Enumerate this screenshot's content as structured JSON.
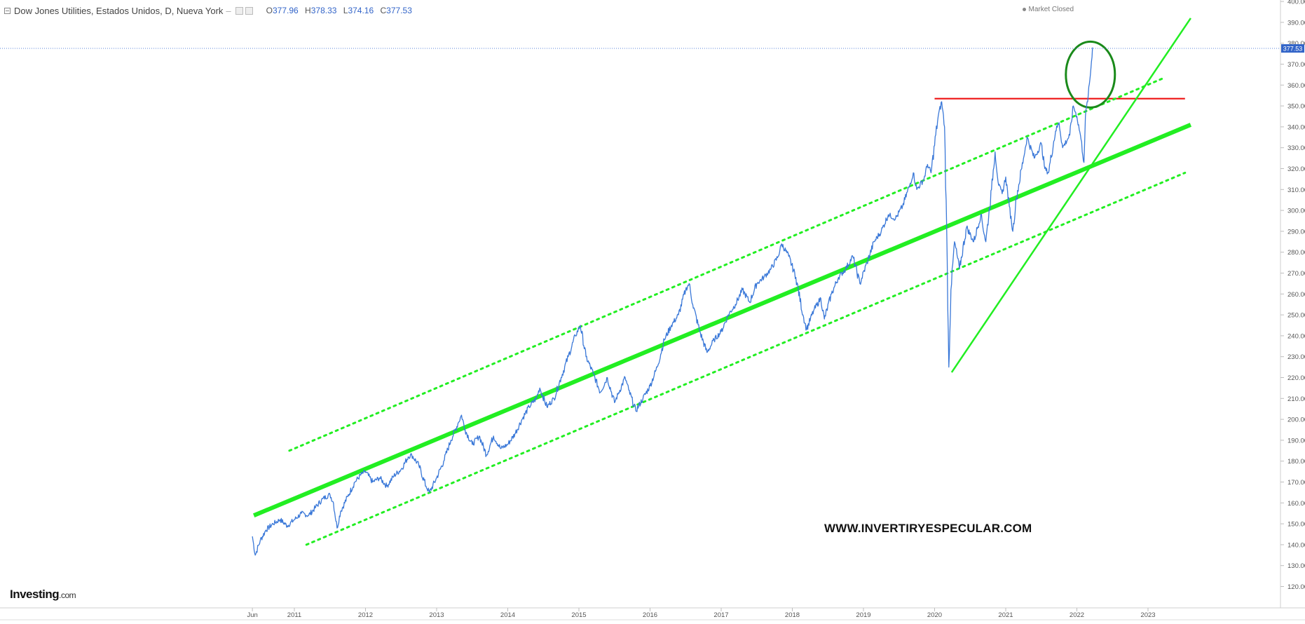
{
  "header": {
    "title": "Dow Jones Utilities, Estados Unidos, D, Nueva York",
    "o_label": "O",
    "o_value": "377.96",
    "h_label": "H",
    "h_value": "378.33",
    "l_label": "L",
    "l_value": "374.16",
    "c_label": "C",
    "c_value": "377.53"
  },
  "market_status": "Market Closed",
  "logo": {
    "main": "Investing",
    "suffix": ".com"
  },
  "watermark": "WWW.INVERTIRYESPECULAR.COM",
  "colors": {
    "price_line": "#3a78d8",
    "channel": "#22ee22",
    "resistance": "#ee1111",
    "circle": "#1a8a1a",
    "last_price_tag": "#3264c8"
  },
  "chart_data": {
    "type": "line",
    "title": "Dow Jones Utilities, Estados Unidos, D, Nueva York",
    "xlabel": "",
    "ylabel": "",
    "ylim": [
      115,
      405
    ],
    "y_ticks": [
      "120.00",
      "130.00",
      "140.00",
      "150.00",
      "160.00",
      "170.00",
      "180.00",
      "190.00",
      "200.00",
      "210.00",
      "220.00",
      "230.00",
      "240.00",
      "250.00",
      "260.00",
      "270.00",
      "280.00",
      "290.00",
      "300.00",
      "310.00",
      "320.00",
      "330.00",
      "340.00",
      "350.00",
      "360.00",
      "370.00",
      "380.00",
      "390.00",
      "400.00"
    ],
    "x_ticks": [
      {
        "label": "Jun",
        "t": 2010.41
      },
      {
        "label": "2011",
        "t": 2011.0
      },
      {
        "label": "2012",
        "t": 2012.0
      },
      {
        "label": "2013",
        "t": 2013.0
      },
      {
        "label": "2014",
        "t": 2014.0
      },
      {
        "label": "2015",
        "t": 2015.0
      },
      {
        "label": "2016",
        "t": 2016.0
      },
      {
        "label": "2017",
        "t": 2017.0
      },
      {
        "label": "2018",
        "t": 2018.0
      },
      {
        "label": "2019",
        "t": 2019.0
      },
      {
        "label": "2020",
        "t": 2020.0
      },
      {
        "label": "2021",
        "t": 2021.0
      },
      {
        "label": "2022",
        "t": 2022.0
      },
      {
        "label": "2023",
        "t": 2023.0
      }
    ],
    "last_price": 377.53,
    "series": [
      {
        "values": [
          [
            2010.41,
            144
          ],
          [
            2010.45,
            135
          ],
          [
            2010.52,
            142
          ],
          [
            2010.6,
            147
          ],
          [
            2010.7,
            150
          ],
          [
            2010.8,
            152
          ],
          [
            2010.9,
            149
          ],
          [
            2011.0,
            152
          ],
          [
            2011.1,
            155
          ],
          [
            2011.2,
            154
          ],
          [
            2011.3,
            158
          ],
          [
            2011.4,
            162
          ],
          [
            2011.5,
            164
          ],
          [
            2011.55,
            160
          ],
          [
            2011.6,
            148
          ],
          [
            2011.65,
            156
          ],
          [
            2011.75,
            163
          ],
          [
            2011.85,
            170
          ],
          [
            2011.95,
            174
          ],
          [
            2012.0,
            175
          ],
          [
            2012.1,
            170
          ],
          [
            2012.2,
            172
          ],
          [
            2012.3,
            168
          ],
          [
            2012.4,
            173
          ],
          [
            2012.5,
            176
          ],
          [
            2012.6,
            182
          ],
          [
            2012.65,
            183
          ],
          [
            2012.75,
            178
          ],
          [
            2012.85,
            168
          ],
          [
            2012.9,
            165
          ],
          [
            2013.0,
            172
          ],
          [
            2013.1,
            180
          ],
          [
            2013.2,
            190
          ],
          [
            2013.3,
            198
          ],
          [
            2013.35,
            202
          ],
          [
            2013.4,
            195
          ],
          [
            2013.5,
            188
          ],
          [
            2013.6,
            192
          ],
          [
            2013.7,
            183
          ],
          [
            2013.8,
            192
          ],
          [
            2013.9,
            186
          ],
          [
            2014.0,
            188
          ],
          [
            2014.1,
            193
          ],
          [
            2014.2,
            200
          ],
          [
            2014.3,
            206
          ],
          [
            2014.4,
            210
          ],
          [
            2014.45,
            215
          ],
          [
            2014.55,
            206
          ],
          [
            2014.65,
            210
          ],
          [
            2014.75,
            220
          ],
          [
            2014.85,
            230
          ],
          [
            2014.95,
            240
          ],
          [
            2015.02,
            245
          ],
          [
            2015.1,
            230
          ],
          [
            2015.2,
            222
          ],
          [
            2015.3,
            213
          ],
          [
            2015.4,
            220
          ],
          [
            2015.5,
            208
          ],
          [
            2015.55,
            212
          ],
          [
            2015.65,
            220
          ],
          [
            2015.7,
            214
          ],
          [
            2015.8,
            204
          ],
          [
            2015.9,
            210
          ],
          [
            2016.0,
            216
          ],
          [
            2016.1,
            225
          ],
          [
            2016.2,
            238
          ],
          [
            2016.3,
            245
          ],
          [
            2016.4,
            250
          ],
          [
            2016.5,
            262
          ],
          [
            2016.55,
            265
          ],
          [
            2016.6,
            255
          ],
          [
            2016.7,
            242
          ],
          [
            2016.8,
            232
          ],
          [
            2016.9,
            238
          ],
          [
            2017.0,
            242
          ],
          [
            2017.1,
            250
          ],
          [
            2017.2,
            255
          ],
          [
            2017.3,
            262
          ],
          [
            2017.4,
            256
          ],
          [
            2017.5,
            265
          ],
          [
            2017.6,
            268
          ],
          [
            2017.7,
            272
          ],
          [
            2017.8,
            278
          ],
          [
            2017.85,
            284
          ],
          [
            2017.95,
            278
          ],
          [
            2018.05,
            268
          ],
          [
            2018.15,
            250
          ],
          [
            2018.2,
            243
          ],
          [
            2018.3,
            252
          ],
          [
            2018.4,
            258
          ],
          [
            2018.45,
            248
          ],
          [
            2018.55,
            260
          ],
          [
            2018.65,
            268
          ],
          [
            2018.75,
            272
          ],
          [
            2018.85,
            278
          ],
          [
            2018.95,
            265
          ],
          [
            2019.05,
            275
          ],
          [
            2019.15,
            285
          ],
          [
            2019.25,
            290
          ],
          [
            2019.35,
            298
          ],
          [
            2019.45,
            296
          ],
          [
            2019.55,
            302
          ],
          [
            2019.65,
            312
          ],
          [
            2019.7,
            318
          ],
          [
            2019.75,
            310
          ],
          [
            2019.85,
            315
          ],
          [
            2019.9,
            322
          ],
          [
            2019.95,
            318
          ],
          [
            2020.05,
            345
          ],
          [
            2020.1,
            352
          ],
          [
            2020.14,
            340
          ],
          [
            2020.17,
            290
          ],
          [
            2020.2,
            225
          ],
          [
            2020.23,
            262
          ],
          [
            2020.28,
            285
          ],
          [
            2020.35,
            272
          ],
          [
            2020.45,
            292
          ],
          [
            2020.55,
            285
          ],
          [
            2020.65,
            298
          ],
          [
            2020.72,
            285
          ],
          [
            2020.8,
            310
          ],
          [
            2020.85,
            328
          ],
          [
            2020.9,
            312
          ],
          [
            2020.95,
            308
          ],
          [
            2021.0,
            316
          ],
          [
            2021.05,
            302
          ],
          [
            2021.1,
            290
          ],
          [
            2021.15,
            306
          ],
          [
            2021.25,
            325
          ],
          [
            2021.3,
            335
          ],
          [
            2021.4,
            325
          ],
          [
            2021.5,
            332
          ],
          [
            2021.55,
            320
          ],
          [
            2021.6,
            318
          ],
          [
            2021.7,
            338
          ],
          [
            2021.75,
            342
          ],
          [
            2021.8,
            330
          ],
          [
            2021.9,
            336
          ],
          [
            2021.95,
            350
          ],
          [
            2022.0,
            345
          ],
          [
            2022.05,
            336
          ],
          [
            2022.1,
            323
          ],
          [
            2022.12,
            345
          ],
          [
            2022.16,
            355
          ],
          [
            2022.19,
            365
          ],
          [
            2022.22,
            378
          ]
        ]
      }
    ],
    "annotations": [
      {
        "type": "resistance_line",
        "y": 353.5,
        "x1": 2020.0,
        "x2": 2023.52
      },
      {
        "type": "trendline",
        "x1": 2010.43,
        "y1": 154.0,
        "x2": 2023.6,
        "y2": 341.0
      },
      {
        "type": "channel_upper",
        "x1": 2010.93,
        "y1": 185.0,
        "x2": 2023.23,
        "y2": 363.5
      },
      {
        "type": "channel_lower",
        "x1": 2011.17,
        "y1": 140.0,
        "x2": 2023.52,
        "y2": 318.0
      },
      {
        "type": "steep_trendline",
        "x1": 2020.24,
        "y1": 222.5,
        "x2": 2023.6,
        "y2": 392.0
      },
      {
        "type": "circle",
        "t": 2022.19,
        "y": 365.0
      }
    ]
  }
}
